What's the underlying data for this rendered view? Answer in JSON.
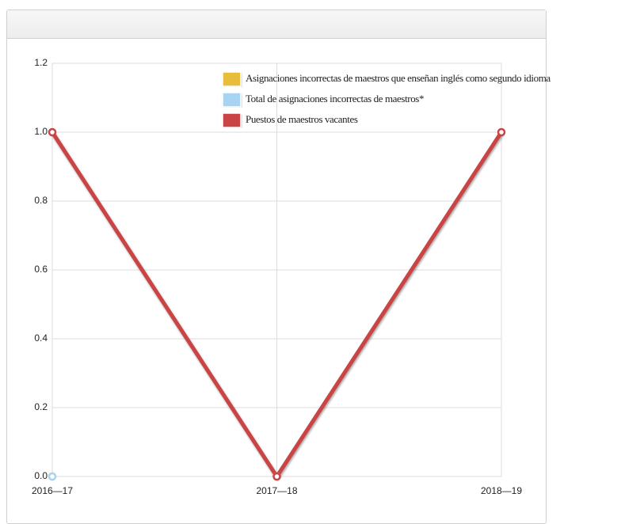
{
  "chart_data": {
    "type": "line",
    "categories": [
      "2016—17",
      "2017—18",
      "2018—19"
    ],
    "series": [
      {
        "name": "Asignaciones incorrectas de maestros que enseñan inglés como segundo idioma",
        "color": "#e8bd3a",
        "values": [
          0,
          0,
          null
        ]
      },
      {
        "name": "Total de asignaciones incorrectas de maestros*",
        "color": "#a9d3f2",
        "values": [
          0,
          0,
          null
        ]
      },
      {
        "name": "Puestos de maestros vacantes",
        "color": "#c94444",
        "values": [
          1,
          0,
          1
        ]
      }
    ],
    "ylim": [
      0,
      1.2
    ],
    "yticks": [
      {
        "value": 0,
        "label": "0.0"
      },
      0.2,
      0.4,
      0.6,
      0.8,
      {
        "value": 1,
        "label": "1.0"
      },
      1.2
    ],
    "grid": true
  }
}
